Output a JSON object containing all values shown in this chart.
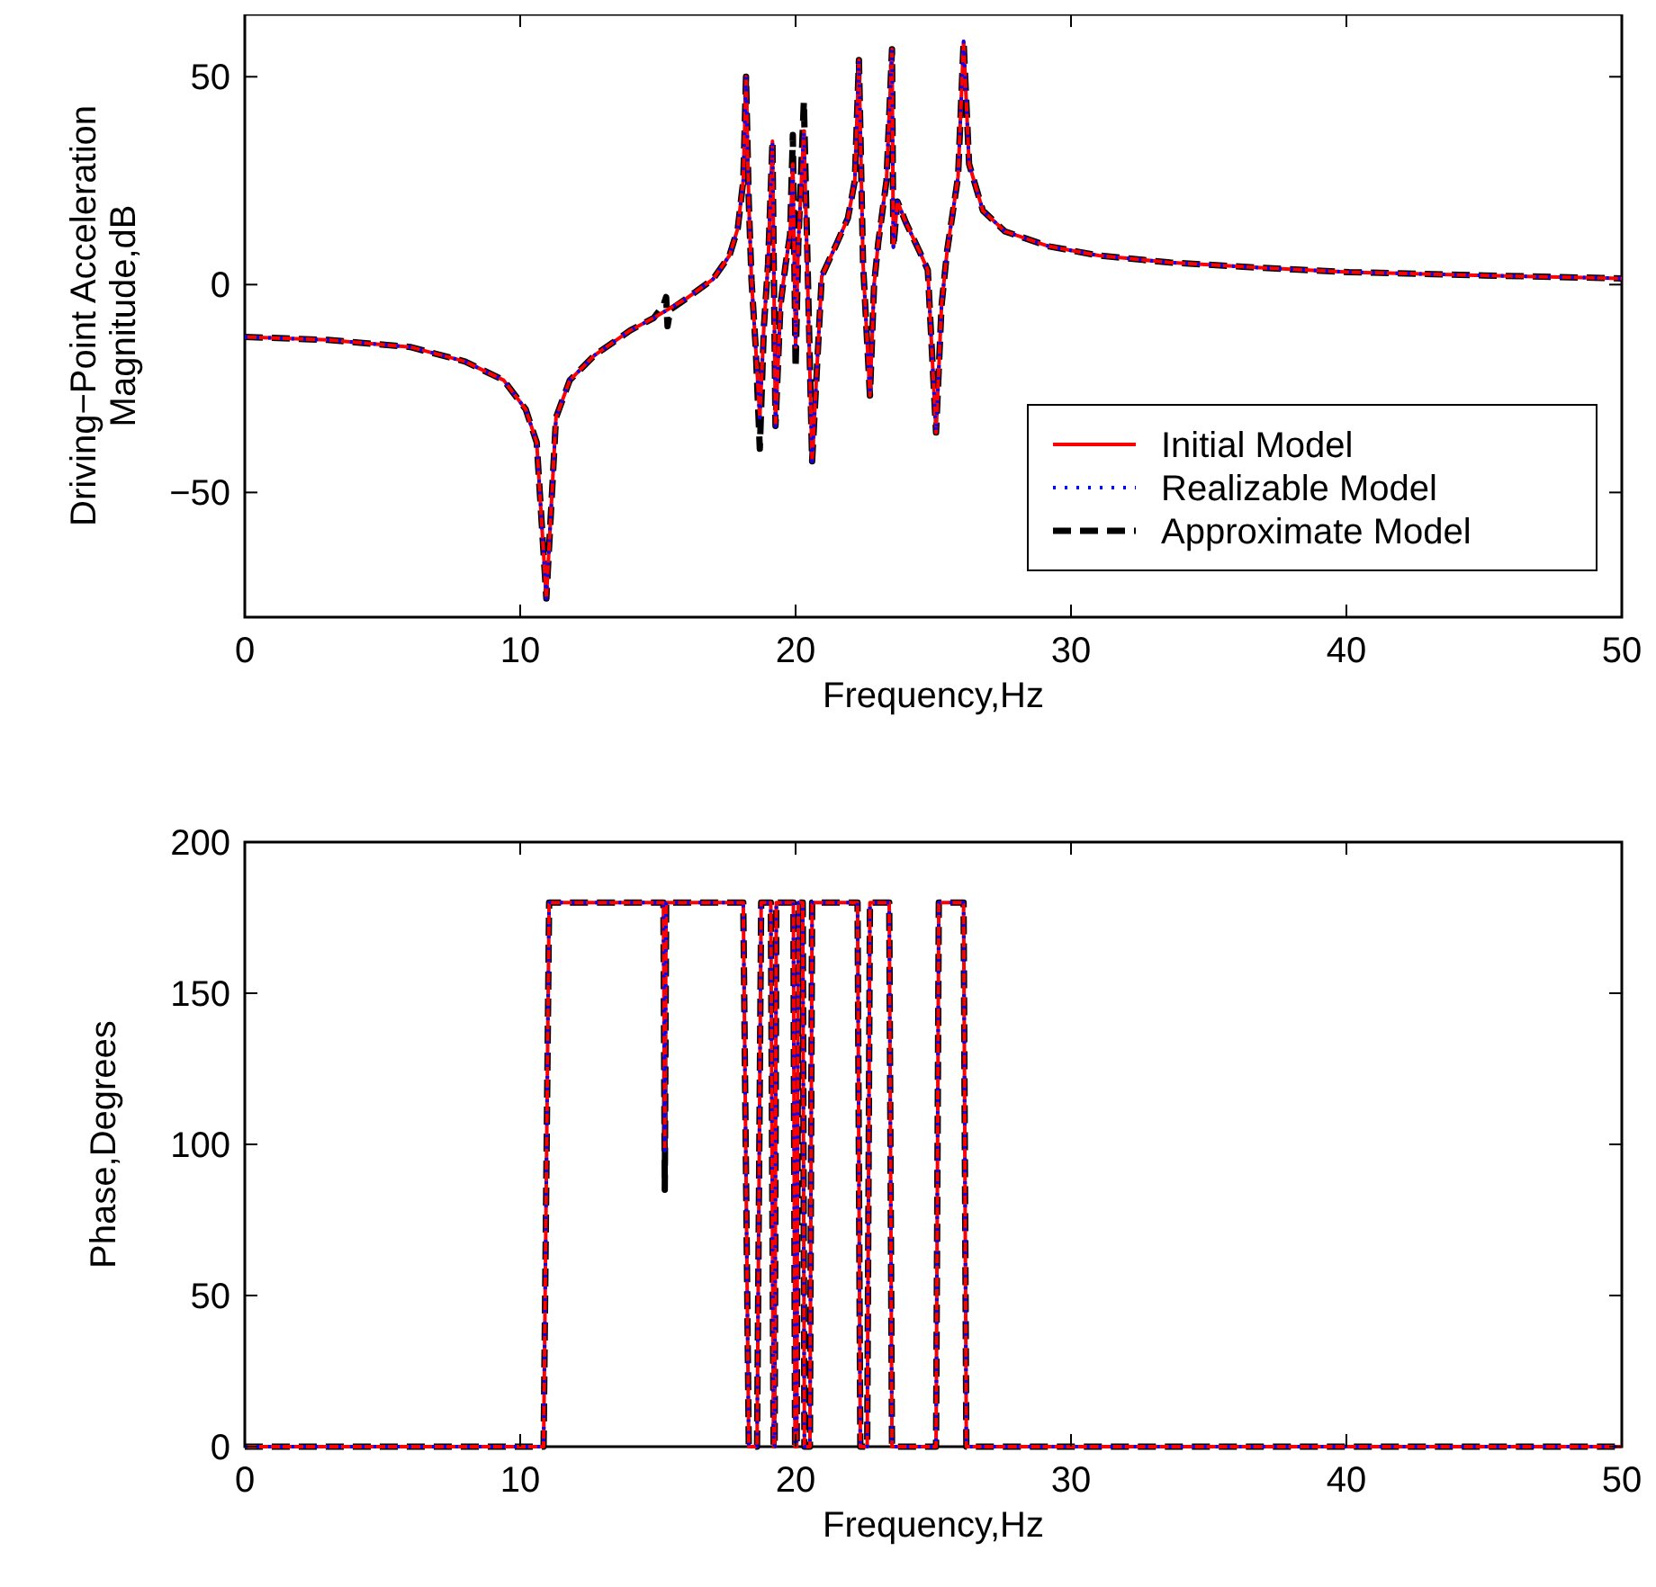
{
  "chart_data": [
    {
      "type": "line",
      "ylabel": "Driving−Point Acceleration\nMagnitude,dB",
      "xlabel": "Frequency,Hz",
      "xlim": [
        0,
        50
      ],
      "xticks": [
        0,
        10,
        20,
        30,
        40,
        50
      ],
      "ylim": [
        -80,
        65
      ],
      "yticks": [
        -50,
        0,
        50
      ],
      "legend": "bottom right",
      "marker": "none",
      "grid": false,
      "series": [
        {
          "name": "Initial Model",
          "color": "#ff0000",
          "line_style": "solid",
          "x": [
            0,
            3,
            6,
            8,
            9.4,
            10.2,
            10.6,
            10.95,
            11.3,
            11.8,
            12.7,
            14,
            14.85,
            16,
            17,
            17.6,
            17.9,
            18.1,
            18.2,
            18.3,
            18.4,
            18.55,
            18.7,
            18.85,
            19,
            19.16,
            19.27,
            19.45,
            19.64,
            19.8,
            19.9,
            20,
            20.1,
            20.3,
            20.6,
            20.95,
            21.5,
            21.9,
            22.15,
            22.3,
            22.45,
            22.7,
            22.85,
            23,
            23.3,
            23.5,
            23.55,
            23.7,
            24,
            24.5,
            24.8,
            25.1,
            25.3,
            25.5,
            25.9,
            26.1,
            26.3,
            26.8,
            27.6,
            29.2,
            31,
            33.6,
            37,
            40.1,
            45,
            50
          ],
          "values": [
            -12.6,
            -13.3,
            -15,
            -18.5,
            -23,
            -30,
            -38,
            -75.5,
            -32,
            -23,
            -17,
            -11,
            -8,
            -3.5,
            1.3,
            7,
            13.5,
            25,
            50,
            20,
            1,
            -15,
            -32,
            -10,
            5,
            34.5,
            -34,
            -5,
            5,
            12,
            29,
            -15,
            10,
            37,
            -42.5,
            2,
            10,
            16,
            25,
            54,
            5,
            -26.7,
            0,
            10,
            25,
            56.6,
            9,
            20,
            15,
            8,
            3.5,
            -35.6,
            -5,
            8,
            26,
            58.5,
            29,
            17.8,
            12.8,
            9.2,
            7,
            5.3,
            4,
            3,
            2.2,
            1.5
          ]
        },
        {
          "name": "Realizable Model",
          "color": "#0000ff",
          "line_style": "dotted",
          "x": [
            0,
            3,
            6,
            8,
            9.4,
            10.2,
            10.6,
            10.95,
            11.3,
            11.8,
            12.7,
            14,
            14.85,
            16,
            17,
            17.6,
            17.9,
            18.1,
            18.2,
            18.3,
            18.4,
            18.55,
            18.7,
            18.85,
            19,
            19.16,
            19.27,
            19.45,
            19.64,
            19.8,
            19.9,
            20,
            20.1,
            20.3,
            20.6,
            20.95,
            21.5,
            21.9,
            22.15,
            22.3,
            22.45,
            22.7,
            22.85,
            23,
            23.3,
            23.5,
            23.55,
            23.7,
            24,
            24.5,
            24.8,
            25.1,
            25.3,
            25.5,
            25.9,
            26.1,
            26.3,
            26.8,
            27.6,
            29.2,
            31,
            33.6,
            37,
            40.1,
            45,
            50
          ],
          "values": [
            -12.6,
            -13.3,
            -15,
            -18.5,
            -23,
            -30,
            -38,
            -75.5,
            -32,
            -23,
            -17,
            -11,
            -8,
            -3.5,
            1.3,
            7,
            13.5,
            25,
            50,
            20,
            1,
            -15,
            -32,
            -10,
            5,
            34.5,
            -34,
            -5,
            5,
            12,
            29,
            -15,
            10,
            37,
            -42.5,
            2,
            10,
            16,
            25,
            54,
            5,
            -26.7,
            0,
            10,
            25,
            56.6,
            9,
            20,
            15,
            8,
            3.5,
            -35.6,
            -5,
            8,
            26,
            58.5,
            29,
            17.8,
            12.8,
            9.2,
            7,
            5.3,
            4,
            3,
            2.2,
            1.5
          ]
        },
        {
          "name": "Approximate Model",
          "color": "#000000",
          "line_style": "dashed",
          "x": [
            0,
            3,
            6,
            8,
            9.4,
            10.2,
            10.6,
            10.95,
            11.3,
            11.8,
            12.7,
            14,
            14.85,
            15.2,
            15.3,
            15.35,
            15.45,
            16,
            17,
            17.6,
            17.9,
            18.1,
            18.2,
            18.3,
            18.4,
            18.55,
            18.7,
            18.85,
            19,
            19.16,
            19.27,
            19.45,
            19.64,
            19.8,
            19.9,
            20,
            20.1,
            20.3,
            20.6,
            20.95,
            21.5,
            21.9,
            22.15,
            22.3,
            22.45,
            22.7,
            22.85,
            23,
            23.3,
            23.5,
            23.55,
            23.7,
            24,
            24.5,
            24.8,
            25.1,
            25.3,
            25.5,
            25.9,
            26.1,
            26.3,
            26.8,
            27.6,
            29.2,
            31,
            33.6,
            37,
            40.1,
            45,
            50
          ],
          "values": [
            -12.6,
            -13.3,
            -15,
            -18.5,
            -23,
            -30,
            -38,
            -75.5,
            -32,
            -23,
            -17,
            -11,
            -8,
            -5,
            -3,
            -10,
            -6,
            -3.5,
            1.3,
            7,
            13.5,
            25,
            50,
            20,
            1,
            -15,
            -39.5,
            -10,
            5,
            34.5,
            -34,
            -5,
            5,
            12,
            36,
            -20,
            10,
            44,
            -42.5,
            2,
            10,
            16,
            25,
            54,
            5,
            -26.7,
            0,
            10,
            25,
            56.6,
            9,
            20,
            15,
            8,
            3.5,
            -35.6,
            -5,
            8,
            26,
            58.5,
            29,
            17.8,
            12.8,
            9.2,
            7,
            5.3,
            4,
            3,
            2.2,
            1.5
          ]
        }
      ]
    },
    {
      "type": "line",
      "ylabel": "Phase,Degrees",
      "xlabel": "Frequency,Hz",
      "xlim": [
        0,
        50
      ],
      "xticks": [
        0,
        10,
        20,
        30,
        40,
        50
      ],
      "ylim": [
        0,
        200
      ],
      "yticks": [
        0,
        50,
        100,
        150,
        200
      ],
      "legend": false,
      "marker": "none",
      "grid": false,
      "series": [
        {
          "color": "#ff0000",
          "line_style": "solid",
          "x": [
            0,
            10.85,
            11.05,
            15.2,
            15.25,
            15.3,
            18.1,
            18.3,
            18.6,
            18.75,
            19.1,
            19.2,
            19.24,
            19.3,
            19.92,
            19.98,
            20.04,
            20.1,
            20.26,
            20.32,
            20.52,
            20.6,
            22.25,
            22.35,
            22.6,
            22.7,
            23.4,
            23.5,
            25.1,
            25.2,
            26.1,
            26.2,
            50
          ],
          "values": [
            0,
            0,
            180,
            180,
            98,
            180,
            180,
            0,
            0,
            180,
            180,
            0,
            0,
            180,
            180,
            0,
            0,
            180,
            180,
            0,
            0,
            180,
            180,
            0,
            0,
            180,
            180,
            0,
            0,
            180,
            180,
            0,
            0
          ]
        },
        {
          "color": "#0000ff",
          "line_style": "dotted",
          "x": [
            0,
            10.85,
            11.05,
            15.2,
            15.25,
            15.3,
            18.1,
            18.3,
            18.6,
            18.75,
            19.1,
            19.2,
            19.24,
            19.3,
            19.92,
            19.98,
            20.04,
            20.1,
            20.26,
            20.32,
            20.52,
            20.6,
            22.25,
            22.35,
            22.6,
            22.7,
            23.4,
            23.5,
            25.1,
            25.2,
            26.1,
            26.2,
            50
          ],
          "values": [
            0,
            0,
            180,
            180,
            98,
            180,
            180,
            0,
            0,
            180,
            180,
            0,
            0,
            180,
            180,
            0,
            0,
            180,
            180,
            0,
            0,
            180,
            180,
            0,
            0,
            180,
            180,
            0,
            0,
            180,
            180,
            0,
            0
          ]
        },
        {
          "color": "#000000",
          "line_style": "dashed",
          "x": [
            0,
            10.85,
            11.05,
            15.2,
            15.25,
            15.3,
            18.1,
            18.3,
            18.6,
            18.75,
            19.1,
            19.2,
            19.24,
            19.3,
            19.92,
            19.98,
            20.04,
            20.1,
            20.26,
            20.32,
            20.52,
            20.6,
            22.25,
            22.35,
            22.6,
            22.7,
            23.4,
            23.5,
            25.1,
            25.2,
            26.1,
            26.2,
            50
          ],
          "values": [
            0,
            0,
            180,
            180,
            85,
            180,
            180,
            0,
            0,
            180,
            180,
            0,
            0,
            180,
            180,
            0,
            0,
            180,
            180,
            0,
            0,
            180,
            180,
            0,
            0,
            180,
            180,
            0,
            0,
            180,
            180,
            0,
            0
          ]
        }
      ]
    }
  ]
}
